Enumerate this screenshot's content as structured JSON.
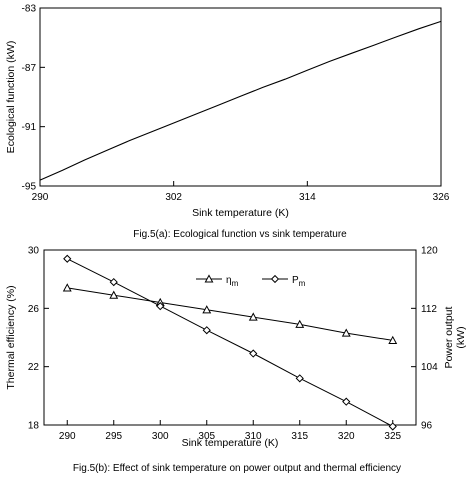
{
  "chart_data": [
    {
      "type": "line",
      "caption": "Fig.5(a): Ecological function vs sink temperature",
      "xlabel": "Sink temperature (K)",
      "ylabel": "Ecological function (kW)",
      "xlim": [
        290,
        326
      ],
      "ylim": [
        -95,
        -83
      ],
      "xticks": [
        "290",
        "302",
        "314",
        "326"
      ],
      "yticks": [
        "-95",
        "-91",
        "-87",
        "-83"
      ],
      "grid": false,
      "series": [
        {
          "x": [
            290,
            292,
            294,
            296,
            298,
            300,
            302,
            304,
            306,
            308,
            310,
            312,
            314,
            316,
            318,
            320,
            322,
            324,
            326
          ],
          "values": [
            -94.6,
            -93.95,
            -93.25,
            -92.6,
            -91.95,
            -91.35,
            -90.75,
            -90.15,
            -89.55,
            -88.95,
            -88.35,
            -87.8,
            -87.2,
            -86.6,
            -86.05,
            -85.5,
            -84.95,
            -84.4,
            -83.9
          ]
        }
      ]
    },
    {
      "type": "line",
      "caption": "Fig.5(b): Effect of sink temperature on power output and thermal efficiency",
      "xlabel": "Sink temperature (K)",
      "ylabel": "Thermal efficiency (%)",
      "ylabel_right": [
        "Power output",
        "(kW)"
      ],
      "xlim": [
        287.5,
        327.5
      ],
      "ylim": [
        18,
        30
      ],
      "ylim_right": [
        96,
        120
      ],
      "xticks": [
        "290",
        "295",
        "300",
        "305",
        "310",
        "315",
        "320",
        "325"
      ],
      "yticks": [
        "18",
        "22",
        "26",
        "30"
      ],
      "yticks_right": [
        "96",
        "104",
        "112",
        "120"
      ],
      "legend_placement": "top-center",
      "grid": false,
      "x": [
        290,
        295,
        300,
        305,
        310,
        315,
        320,
        325
      ],
      "series": [
        {
          "legend_base": "η",
          "legend_sub": "m",
          "marker": "triangle",
          "axis": "left",
          "values": [
            27.4,
            26.9,
            26.4,
            25.9,
            25.4,
            24.9,
            24.3,
            23.8
          ]
        },
        {
          "legend_base": "P",
          "legend_sub": "m",
          "marker": "diamond",
          "axis": "right",
          "values": [
            118.8,
            115.6,
            112.3,
            109.0,
            105.8,
            102.4,
            99.2,
            95.8
          ]
        }
      ]
    }
  ]
}
